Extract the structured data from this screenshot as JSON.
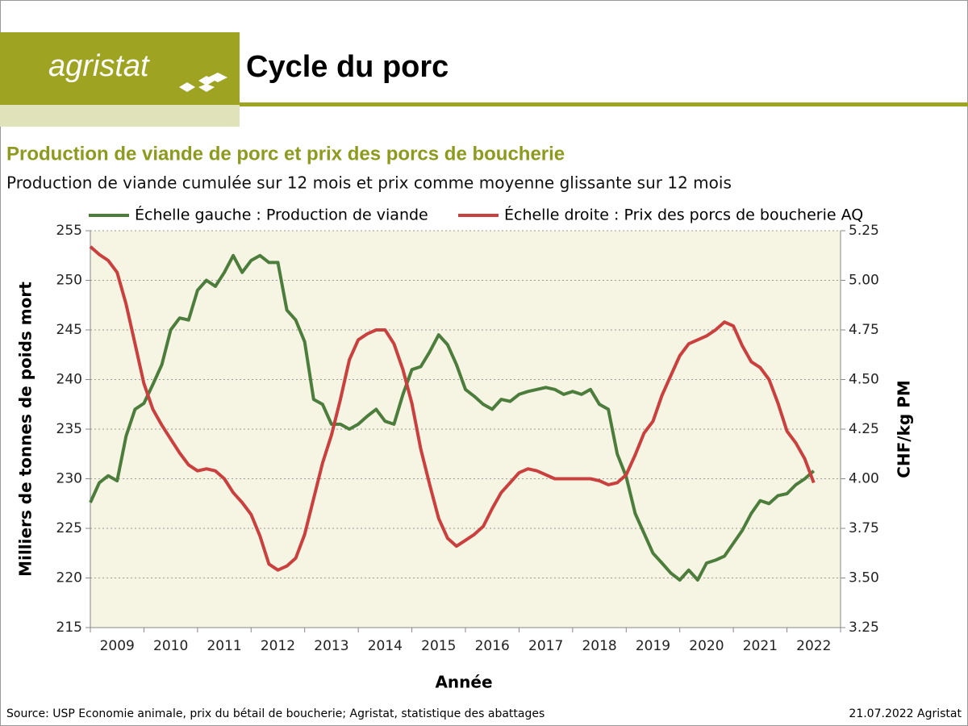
{
  "logo": "agristat",
  "header": {
    "title": "Cycle du porc"
  },
  "chart_data": {
    "type": "line",
    "title": "Production de viande de porc et prix des porcs de boucherie",
    "subtitle": "Production de viande cumulée sur 12 mois et prix comme moyenne glissante sur 12 mois",
    "xlabel": "Année",
    "ylabel": "Milliers de tonnes de poids mort",
    "y2label": "CHF/kg PM",
    "categories": [
      "2009",
      null,
      null,
      null,
      null,
      null,
      "2010",
      null,
      null,
      null,
      null,
      null,
      "2011",
      null,
      null,
      null,
      null,
      null,
      "2012",
      null,
      null,
      null,
      null,
      null,
      "2013",
      null,
      null,
      null,
      null,
      null,
      "2014",
      null,
      null,
      null,
      null,
      null,
      "2015",
      null,
      null,
      null,
      null,
      null,
      "2016",
      null,
      null,
      null,
      null,
      null,
      "2017",
      null,
      null,
      null,
      null,
      null,
      "2018",
      null,
      null,
      null,
      null,
      null,
      "2019",
      null,
      null,
      null,
      null,
      null,
      "2020",
      null,
      null,
      null,
      null,
      null,
      "2021",
      null,
      null,
      null,
      null,
      null,
      "2022",
      null,
      null,
      null
    ],
    "ylim": [
      215,
      255
    ],
    "yticks": [
      215,
      220,
      225,
      230,
      235,
      240,
      245,
      250,
      255
    ],
    "y2lim": [
      3.25,
      5.25
    ],
    "y2ticks": [
      3.25,
      {
        "value": 3.5,
        "label": "3.50"
      },
      3.75,
      {
        "value": 4,
        "label": "4.00"
      },
      4.25,
      {
        "value": 4.5,
        "label": "4.50"
      },
      4.75,
      {
        "value": 5,
        "label": "5.00"
      },
      5.25
    ],
    "grid": true,
    "series": [
      {
        "name": "Échelle gauche : Production de viande",
        "color": "#4d7d3c",
        "values": [
          227.6,
          229.6,
          230.3,
          229.8,
          234.3,
          237.0,
          237.6,
          239.5,
          241.5,
          245.0,
          246.2,
          246.0,
          249.0,
          250.0,
          249.4,
          250.8,
          252.5,
          250.8,
          252.0,
          252.5,
          251.8,
          251.8,
          247.0,
          246.0,
          243.8,
          238.0,
          237.5,
          235.5,
          235.5,
          235.0,
          235.5,
          236.3,
          237.0,
          235.8,
          235.5,
          238.5,
          241.0,
          241.3,
          242.8,
          244.5,
          243.5,
          241.5,
          239.0,
          238.3,
          237.5,
          237.0,
          238.0,
          237.8,
          238.5,
          238.8,
          239.0,
          239.2,
          239.0,
          238.5,
          238.8,
          238.5,
          239.0,
          237.5,
          237.0,
          232.5,
          230.2,
          226.5,
          224.5,
          222.5,
          221.5,
          220.5,
          219.8,
          220.8,
          219.8,
          221.5,
          221.8,
          222.2,
          223.5,
          224.8,
          226.5,
          227.8,
          227.5,
          228.3,
          228.5,
          229.4,
          230.0,
          230.8
        ]
      },
      {
        "name": "Échelle droite : Prix des porcs de boucherie AQ",
        "color": "#c9403f",
        "axis": "y2",
        "values": [
          5.17,
          5.13,
          5.1,
          5.04,
          4.88,
          4.68,
          4.48,
          4.35,
          4.27,
          4.2,
          4.13,
          4.07,
          4.04,
          4.05,
          4.04,
          4.0,
          3.93,
          3.88,
          3.82,
          3.71,
          3.57,
          3.54,
          3.56,
          3.6,
          3.72,
          3.9,
          4.08,
          4.22,
          4.4,
          4.6,
          4.7,
          4.73,
          4.75,
          4.75,
          4.68,
          4.55,
          4.38,
          4.15,
          3.97,
          3.8,
          3.7,
          3.66,
          3.69,
          3.72,
          3.76,
          3.85,
          3.93,
          3.98,
          4.03,
          4.05,
          4.04,
          4.02,
          4.0,
          4.0,
          4.0,
          4.0,
          4.0,
          3.99,
          3.97,
          3.98,
          4.02,
          4.12,
          4.23,
          4.29,
          4.42,
          4.52,
          4.62,
          4.68,
          4.7,
          4.72,
          4.75,
          4.79,
          4.77,
          4.67,
          4.59,
          4.56,
          4.5,
          4.38,
          4.24,
          4.18,
          4.1,
          3.98
        ]
      }
    ],
    "legend": "top"
  },
  "footer": {
    "source": "Source: USP Economie animale, prix du bétail de boucherie; Agristat, statistique des abattages",
    "date": "21.07.2022 Agristat"
  }
}
